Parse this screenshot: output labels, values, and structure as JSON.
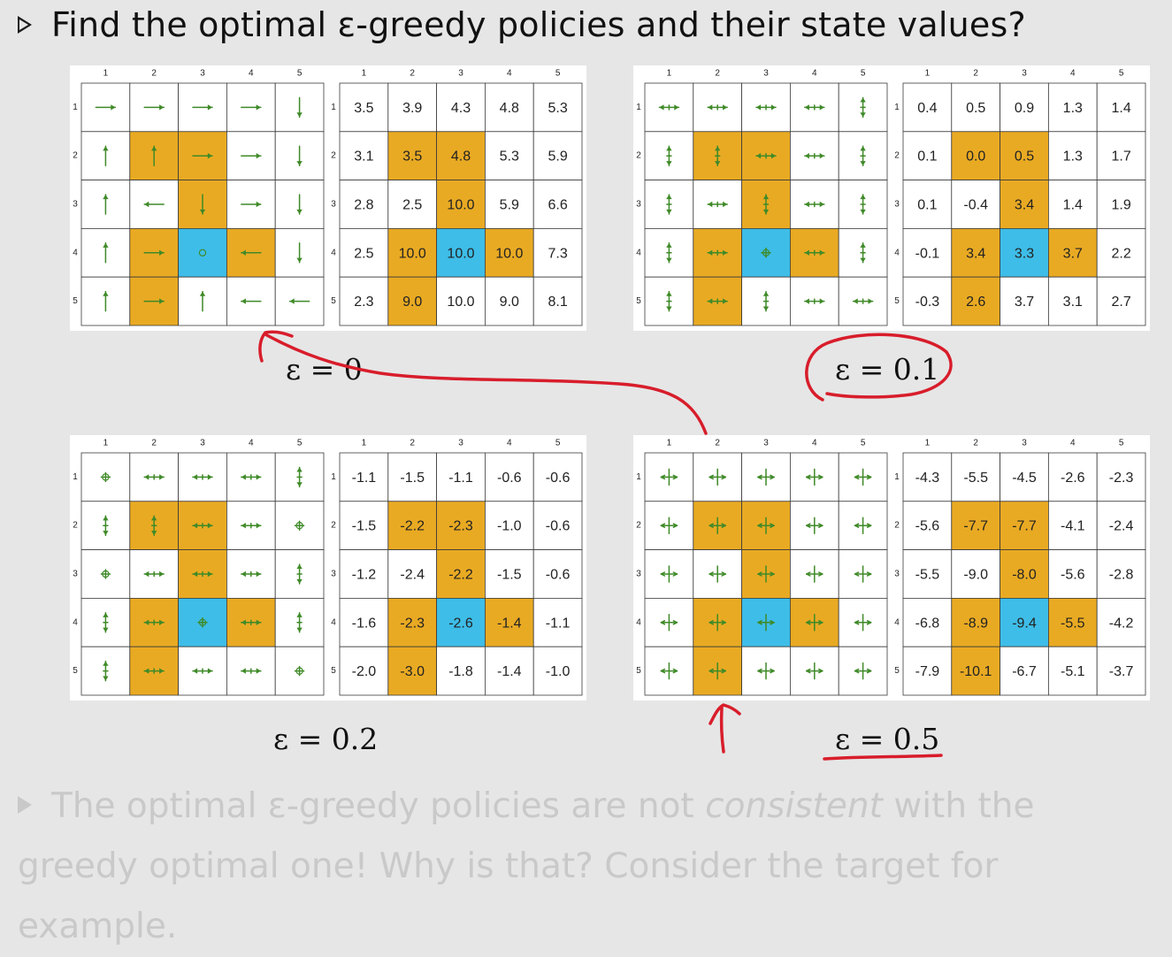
{
  "title": {
    "text": "Find the optimal ε-greedy policies and their state values?"
  },
  "colors": {
    "forbidden": "#e9aa23",
    "target": "#3ebde8",
    "arrow": "#3f8a28",
    "annotation": "#d81d2b"
  },
  "axis_labels": [
    "1",
    "2",
    "3",
    "4",
    "5"
  ],
  "forbidden_cells": [
    [
      1,
      1
    ],
    [
      1,
      2
    ],
    [
      2,
      2
    ],
    [
      3,
      1
    ],
    [
      3,
      3
    ],
    [
      4,
      1
    ]
  ],
  "target_cell": [
    3,
    2
  ],
  "icon_legend": {
    "R": "arrow-right-icon",
    "D": "arrow-down-icon",
    "U": "arrow-up-icon",
    "L": "arrow-left-icon",
    "O": "stay-circle-icon",
    "LR": "arrow-left-right-icon",
    "UD": "arrow-up-down-icon",
    "P": "plus-arrows-icon",
    "PO": "circle-plus-icon"
  },
  "panels": [
    {
      "epsilon_label": "ε = 0",
      "policy": [
        [
          "R",
          "R",
          "R",
          "R",
          "D"
        ],
        [
          "U",
          "U",
          "R",
          "R",
          "D"
        ],
        [
          "U",
          "L",
          "D",
          "R",
          "D"
        ],
        [
          "U",
          "R",
          "O",
          "L",
          "D"
        ],
        [
          "U",
          "R",
          "U",
          "L",
          "L"
        ]
      ],
      "values": [
        [
          "3.5",
          "3.9",
          "4.3",
          "4.8",
          "5.3"
        ],
        [
          "3.1",
          "3.5",
          "4.8",
          "5.3",
          "5.9"
        ],
        [
          "2.8",
          "2.5",
          "10.0",
          "5.9",
          "6.6"
        ],
        [
          "2.5",
          "10.0",
          "10.0",
          "10.0",
          "7.3"
        ],
        [
          "2.3",
          "9.0",
          "10.0",
          "9.0",
          "8.1"
        ]
      ]
    },
    {
      "epsilon_label": "ε = 0.1",
      "policy": [
        [
          "LR",
          "LR",
          "LR",
          "LR",
          "UD"
        ],
        [
          "UD",
          "UD",
          "LR",
          "LR",
          "UD"
        ],
        [
          "UD",
          "LR",
          "UD",
          "LR",
          "UD"
        ],
        [
          "UD",
          "LR",
          "PO",
          "LR",
          "UD"
        ],
        [
          "UD",
          "LR",
          "UD",
          "LR",
          "LR"
        ]
      ],
      "values": [
        [
          "0.4",
          "0.5",
          "0.9",
          "1.3",
          "1.4"
        ],
        [
          "0.1",
          "0.0",
          "0.5",
          "1.3",
          "1.7"
        ],
        [
          "0.1",
          "-0.4",
          "3.4",
          "1.4",
          "1.9"
        ],
        [
          "-0.1",
          "3.4",
          "3.3",
          "3.7",
          "2.2"
        ],
        [
          "-0.3",
          "2.6",
          "3.7",
          "3.1",
          "2.7"
        ]
      ]
    },
    {
      "epsilon_label": "ε = 0.2",
      "policy": [
        [
          "PO",
          "LR",
          "LR",
          "LR",
          "UD"
        ],
        [
          "UD",
          "UD",
          "LR",
          "LR",
          "PO"
        ],
        [
          "PO",
          "LR",
          "LR",
          "LR",
          "UD"
        ],
        [
          "UD",
          "LR",
          "PO",
          "LR",
          "UD"
        ],
        [
          "UD",
          "LR",
          "LR",
          "LR",
          "PO"
        ]
      ],
      "values": [
        [
          "-1.1",
          "-1.5",
          "-1.1",
          "-0.6",
          "-0.6"
        ],
        [
          "-1.5",
          "-2.2",
          "-2.3",
          "-1.0",
          "-0.6"
        ],
        [
          "-1.2",
          "-2.4",
          "-2.2",
          "-1.5",
          "-0.6"
        ],
        [
          "-1.6",
          "-2.3",
          "-2.6",
          "-1.4",
          "-1.1"
        ],
        [
          "-2.0",
          "-3.0",
          "-1.8",
          "-1.4",
          "-1.0"
        ]
      ]
    },
    {
      "epsilon_label": "ε = 0.5",
      "policy": [
        [
          "P",
          "P",
          "P",
          "P",
          "P"
        ],
        [
          "P",
          "P",
          "P",
          "P",
          "P"
        ],
        [
          "P",
          "P",
          "P",
          "P",
          "P"
        ],
        [
          "P",
          "P",
          "P",
          "P",
          "P"
        ],
        [
          "P",
          "P",
          "P",
          "P",
          "P"
        ]
      ],
      "values": [
        [
          "-4.3",
          "-5.5",
          "-4.5",
          "-2.6",
          "-2.3"
        ],
        [
          "-5.6",
          "-7.7",
          "-7.7",
          "-4.1",
          "-2.4"
        ],
        [
          "-5.5",
          "-9.0",
          "-8.0",
          "-5.6",
          "-2.8"
        ],
        [
          "-6.8",
          "-8.9",
          "-9.4",
          "-5.5",
          "-4.2"
        ],
        [
          "-7.9",
          "-10.1",
          "-6.7",
          "-5.1",
          "-3.7"
        ]
      ]
    }
  ],
  "footer": {
    "part1": "The optimal ε-greedy policies are not ",
    "emph": "consistent",
    "part2": " with the greedy optimal one! Why is that? Consider the target for example."
  }
}
